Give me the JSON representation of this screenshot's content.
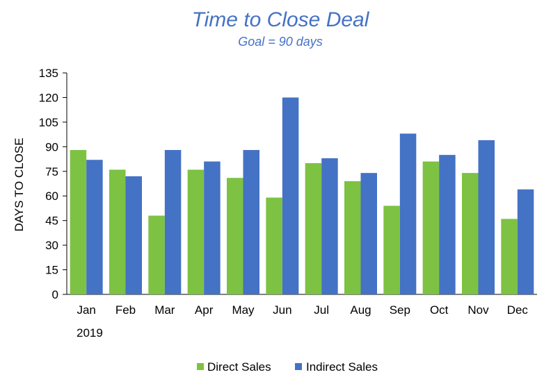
{
  "chart_data": {
    "type": "bar",
    "title": "Time to Close Deal",
    "subtitle": "Goal = 90 days",
    "ylabel": "DAYS TO CLOSE",
    "xlabel": "",
    "year_label": "2019",
    "categories": [
      "Jan",
      "Feb",
      "Mar",
      "Apr",
      "May",
      "Jun",
      "Jul",
      "Aug",
      "Sep",
      "Oct",
      "Nov",
      "Dec"
    ],
    "series": [
      {
        "name": "Direct Sales",
        "color": "#7DC242",
        "values": [
          88,
          76,
          48,
          76,
          71,
          59,
          80,
          69,
          54,
          81,
          74,
          46
        ]
      },
      {
        "name": "Indirect Sales",
        "color": "#4472C4",
        "values": [
          82,
          72,
          88,
          81,
          88,
          120,
          83,
          74,
          98,
          85,
          94,
          64
        ]
      }
    ],
    "ylim": [
      0,
      135
    ],
    "yticks": [
      0,
      15,
      30,
      45,
      60,
      75,
      90,
      105,
      120,
      135
    ],
    "grid": false,
    "legend": "bottom"
  }
}
